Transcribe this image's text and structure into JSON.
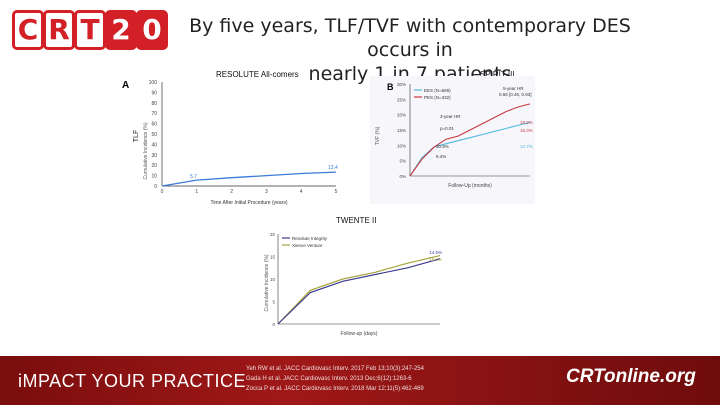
{
  "logo": {
    "letters": [
      "C",
      "R",
      "T",
      "2",
      "0"
    ]
  },
  "title": {
    "line1": "By five years, TLF/TVF with contemporary DES occurs in",
    "line2": "nearly 1 in 7 patients"
  },
  "panels": {
    "resolute": {
      "label": "RESOLUTE All-comers"
    },
    "spirit": {
      "label": "SPIRIT III"
    },
    "twente": {
      "label": "TWENTE II"
    }
  },
  "chart_data": [
    {
      "type": "line",
      "panel": "A",
      "ylabel": "TLF",
      "inner_ylabel": "Cumulative Incidence (%)",
      "xlabel": "Time After Initial Procedure (years)",
      "x": [
        0,
        1,
        2,
        3,
        4,
        5
      ],
      "ylim": [
        0,
        100
      ],
      "yticks": [
        0,
        10,
        20,
        30,
        40,
        50,
        60,
        70,
        80,
        90,
        100
      ],
      "series": [
        {
          "name": "",
          "values": [
            0,
            5.7,
            8,
            10,
            12,
            13.4
          ]
        }
      ],
      "annotations": [
        "5.7",
        "13.4"
      ]
    },
    {
      "type": "line",
      "panel": "B",
      "ylabel": "TVF (%)",
      "xlabel": "Follow-Up (months)",
      "x": [
        0,
        6,
        12,
        18,
        24,
        30,
        36,
        42,
        48,
        54,
        60
      ],
      "ylim": [
        0,
        30
      ],
      "series": [
        {
          "name": "EES (N=669)",
          "values": [
            0,
            6,
            9.5,
            10.5,
            11.5,
            12.5,
            13.5,
            14.5,
            15.5,
            16.5,
            17.5
          ]
        },
        {
          "name": "PES (N=332)",
          "values": [
            0,
            5.5,
            9.4,
            12,
            13,
            15,
            17,
            19,
            21,
            22.5,
            23.5
          ]
        }
      ],
      "annotations": [
        "5-year HR",
        "0.66 [0.46, 0.93]",
        "3-year HR",
        "p=0.01",
        "10.9%",
        "9.4%",
        "19.2%",
        "16.3%",
        "12.7%"
      ]
    },
    {
      "type": "line",
      "panel": "",
      "ylabel": "Cumulative Incidence (%)",
      "xlabel": "Follow-up (days)",
      "x": [
        0,
        360,
        720,
        1080,
        1440,
        1800
      ],
      "ylim": [
        0,
        20
      ],
      "series": [
        {
          "name": "Resolute Integrity",
          "values": [
            0,
            7,
            9.5,
            11,
            12.5,
            14.5
          ]
        },
        {
          "name": "Xience Venture",
          "values": [
            0,
            7.5,
            10,
            11.5,
            13.5,
            15.2
          ]
        }
      ],
      "annotations": [
        "14.5%",
        "15.2%"
      ]
    }
  ],
  "footer": {
    "impact": "iMPACT YOUR PRACTICE",
    "refs": [
      "Yeh RW et al. JACC Cardiovasc Interv. 2017 Feb 13;10(3):247-254",
      "Gada H et al. JACC Cardiovasc Interv. 2013 Dec;6(12):1263-6",
      "Zocca P et al. JACC Cardiovasc Interv. 2018 Mar 12;11(5):462-469"
    ],
    "brand": "CRTonline.org"
  },
  "colors": {
    "brand_red": "#d32027",
    "footer": "#8b0f0f",
    "series_blue": "#3b7bd6",
    "series_red": "#c8373f",
    "series_cyan": "#4fb7de",
    "series_olive": "#a6a23d",
    "series_navy": "#3c3c8f"
  }
}
